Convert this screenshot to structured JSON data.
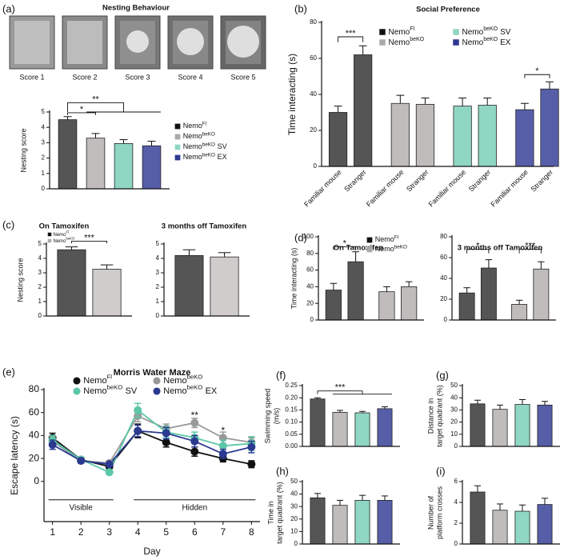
{
  "chart_data": [
    {
      "type": "bar",
      "panel": "(a)",
      "title": "Nesting Behaviour",
      "image_labels": [
        "Score 1",
        "Score 2",
        "Score 3",
        "Score 4",
        "Score 5"
      ],
      "ylabel": "Nesting score",
      "ylim": [
        0,
        5
      ],
      "yticks": [
        0,
        1,
        2,
        3,
        4,
        5
      ],
      "values": [
        4.5,
        3.3,
        2.95,
        2.8
      ],
      "errors": [
        0.2,
        0.3,
        0.25,
        0.3
      ],
      "colors": [
        "#555555",
        "#c0bcbc",
        "#8fd6c3",
        "#575ea8"
      ],
      "legend": [
        {
          "name": "Nemo",
          "sup": "Fl",
          "color": "#111111"
        },
        {
          "name": "Nemo",
          "sup": "beKO",
          "color": "#aaaaaa"
        },
        {
          "name": "Nemo",
          "sup": "beKO",
          "suffix": "SV",
          "color": "#8fd6c3"
        },
        {
          "name": "Nemo",
          "sup": "beKO",
          "suffix": "EX",
          "color": "#2b3990"
        }
      ],
      "annotations": [
        {
          "text": "*"
        },
        {
          "text": "**"
        }
      ]
    },
    {
      "type": "bar",
      "panel": "(b)",
      "title": "Social Preference",
      "ylabel": "Time interacting (s)",
      "ylim": [
        0,
        80
      ],
      "yticks": [
        0,
        20,
        40,
        60,
        80
      ],
      "categories": [
        "Familiar mouse",
        "Stranger",
        "Familiar mouse",
        "Stranger",
        "Familiar mouse",
        "Stranger",
        "Familiar mouse",
        "Stranger"
      ],
      "values": [
        30,
        62,
        35,
        34.5,
        33.5,
        34,
        31.5,
        43
      ],
      "errors": [
        3.5,
        5,
        4.5,
        3.5,
        4.5,
        4,
        3.5,
        4
      ],
      "colors": [
        "#555555",
        "#555555",
        "#c0bcbc",
        "#c0bcbc",
        "#8fd6c3",
        "#8fd6c3",
        "#575ea8",
        "#575ea8"
      ],
      "legend": [
        {
          "name": "Nemo",
          "sup": "Fl",
          "color": "#111111"
        },
        {
          "name": "Nemo",
          "sup": "beKO",
          "suffix": "SV",
          "color": "#8fd6c3"
        },
        {
          "name": "Nemo",
          "sup": "beKO",
          "color": "#aaaaaa"
        },
        {
          "name": "Nemo",
          "sup": "beKO",
          "suffix": "EX",
          "color": "#2b3990"
        }
      ],
      "annotations": [
        {
          "text": "***"
        },
        {
          "text": "*"
        }
      ]
    },
    {
      "type": "bar",
      "panel": "(c)",
      "title": "On Tamoxifen",
      "ylabel": "Nesting score",
      "ylim": [
        0,
        5
      ],
      "yticks": [
        0,
        1,
        2,
        3,
        4,
        5
      ],
      "values": [
        4.6,
        3.25
      ],
      "errors": [
        0.2,
        0.3
      ],
      "colors": [
        "#555555",
        "#d0cccc"
      ],
      "legend": [
        {
          "name": "Nemo",
          "sup": "Fl",
          "color": "#111111"
        },
        {
          "name": "Nemo",
          "sup": "beKO",
          "color": "#aaaaaa"
        }
      ],
      "annotations": [
        {
          "text": "***"
        }
      ]
    },
    {
      "type": "bar",
      "title": "3 months off Tamoxifen",
      "ylim": [
        0,
        5
      ],
      "yticks": [
        0,
        1,
        2,
        3,
        4,
        5
      ],
      "values": [
        4.2,
        4.1
      ],
      "errors": [
        0.4,
        0.3
      ],
      "colors": [
        "#555555",
        "#d0cccc"
      ]
    },
    {
      "type": "bar",
      "panel": "(d)",
      "title": "On Tamoxifen",
      "ylabel": "Time interacting (s)",
      "ylim": [
        0,
        100
      ],
      "yticks": [
        0,
        20,
        40,
        60,
        80,
        100
      ],
      "values": [
        36,
        70,
        34,
        40
      ],
      "errors": [
        8,
        12,
        6,
        6
      ],
      "colors": [
        "#555555",
        "#555555",
        "#c0bcbc",
        "#c0bcbc"
      ],
      "legend": [
        {
          "name": "Nemo",
          "sup": "Fl",
          "color": "#111111"
        },
        {
          "name": "Nemo",
          "sup": "beKO",
          "color": "#aaaaaa"
        }
      ],
      "annotations": [
        {
          "text": "*"
        }
      ]
    },
    {
      "type": "bar",
      "title": "3 months off Tamoxifen",
      "ylim": [
        0,
        80
      ],
      "yticks": [
        0,
        20,
        40,
        60,
        80
      ],
      "values": [
        26,
        50,
        15,
        49
      ],
      "errors": [
        5,
        8,
        4,
        7
      ],
      "colors": [
        "#555555",
        "#555555",
        "#c0bcbc",
        "#c0bcbc"
      ],
      "annotations": [
        {
          "text": "*"
        },
        {
          "text": "***"
        }
      ]
    },
    {
      "type": "line",
      "panel": "(e)",
      "title": "Morris Water Maze",
      "xlabel": "Day",
      "ylabel": "Escape latency (s)",
      "x": [
        1,
        2,
        3,
        4,
        5,
        6,
        7,
        8
      ],
      "xlim": [
        0.7,
        8.3
      ],
      "xticks": [
        1,
        2,
        3,
        4,
        5,
        6,
        7,
        8
      ],
      "ylim": [
        -35,
        80
      ],
      "yticks": [
        0,
        20,
        40,
        60,
        80
      ],
      "phases": [
        "Visible",
        "Hidden"
      ],
      "series": [
        {
          "name": "Nemo",
          "sup": "Fl",
          "color": "#111111",
          "values": [
            38,
            19,
            13,
            44,
            34,
            26,
            20,
            15
          ],
          "errors": [
            4,
            2,
            2,
            6,
            4,
            4,
            3,
            3
          ]
        },
        {
          "name": "Nemo",
          "sup": "beKO",
          "color": "#999999",
          "values": [
            35,
            18,
            16,
            57,
            46,
            51,
            38,
            34
          ],
          "errors": [
            4,
            2,
            2,
            5,
            4,
            4,
            5,
            4
          ]
        },
        {
          "name": "Nemo",
          "sup": "beKO",
          "suffix": "SV",
          "color": "#5cc6a8",
          "values": [
            36,
            19,
            8,
            62,
            43,
            38,
            31,
            33
          ],
          "errors": [
            4,
            2,
            1,
            6,
            5,
            5,
            5,
            6
          ]
        },
        {
          "name": "Nemo",
          "sup": "beKO",
          "suffix": "EX",
          "color": "#2b3990",
          "values": [
            32,
            18,
            15,
            44,
            42,
            35,
            24,
            30
          ],
          "errors": [
            4,
            2,
            2,
            5,
            5,
            5,
            4,
            5
          ]
        }
      ],
      "annotations": [
        {
          "text": "**"
        },
        {
          "text": "*"
        }
      ]
    },
    {
      "type": "bar",
      "panel": "(f)",
      "ylabel": [
        "Swimming speed",
        "(m/s)"
      ],
      "ylim": [
        0,
        0.25
      ],
      "yticks": [
        {
          "value": 0,
          "label": "0.00"
        },
        {
          "value": 0.05,
          "label": "0.05"
        },
        {
          "value": 0.1,
          "label": "0.10"
        },
        {
          "value": 0.15,
          "label": "0.15"
        },
        {
          "value": 0.2,
          "label": "0.20"
        },
        {
          "value": 0.25,
          "label": "0.25"
        }
      ],
      "values": [
        0.195,
        0.14,
        0.138,
        0.155
      ],
      "errors": [
        0.005,
        0.008,
        0.006,
        0.008
      ],
      "colors": [
        "#555555",
        "#c0bcbc",
        "#8fd6c3",
        "#575ea8"
      ],
      "annotations": [
        {
          "text": "***"
        }
      ]
    },
    {
      "type": "bar",
      "panel": "(g)",
      "ylabel": [
        "Distance in",
        "target quadrant (%)"
      ],
      "ylim": [
        0,
        50
      ],
      "yticks": [
        0,
        10,
        20,
        30,
        40,
        50
      ],
      "values": [
        35,
        30.5,
        34.5,
        34
      ],
      "errors": [
        3,
        3.5,
        4,
        3
      ],
      "colors": [
        "#555555",
        "#c0bcbc",
        "#8fd6c3",
        "#575ea8"
      ]
    },
    {
      "type": "bar",
      "panel": "(h)",
      "ylabel": [
        "Time in",
        "target quadrant (%)"
      ],
      "ylim": [
        0,
        50
      ],
      "yticks": [
        0,
        10,
        20,
        30,
        40,
        50
      ],
      "values": [
        37,
        31,
        35,
        35
      ],
      "errors": [
        3.5,
        4,
        4,
        3.5
      ],
      "colors": [
        "#555555",
        "#c0bcbc",
        "#8fd6c3",
        "#575ea8"
      ]
    },
    {
      "type": "bar",
      "panel": "(i)",
      "ylabel": [
        "Number of",
        "platform crosses"
      ],
      "ylim": [
        0,
        6
      ],
      "yticks": [
        0,
        2,
        4,
        6
      ],
      "values": [
        5,
        3.25,
        3.15,
        3.8
      ],
      "errors": [
        0.6,
        0.6,
        0.6,
        0.6
      ],
      "colors": [
        "#555555",
        "#c0bcbc",
        "#8fd6c3",
        "#575ea8"
      ]
    }
  ]
}
